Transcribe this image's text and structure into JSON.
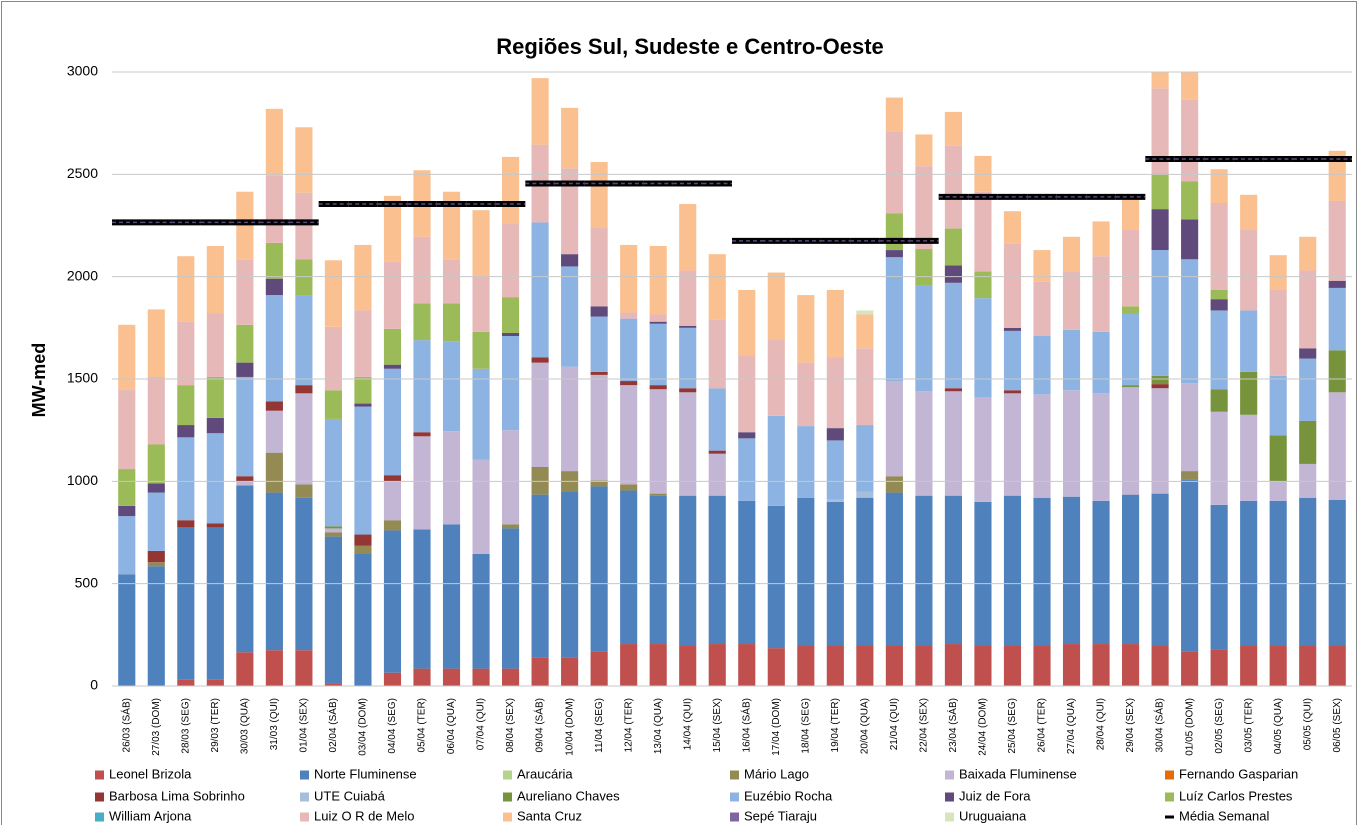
{
  "chart_data": {
    "type": "bar",
    "stacked": true,
    "title": "Regiões Sul, Sudeste e Centro-Oeste",
    "y_label": "MW-med",
    "ylim": [
      0,
      3000
    ],
    "yticks": [
      0,
      500,
      1000,
      1500,
      2000,
      2500,
      3000
    ],
    "grid": true,
    "legend": "bottom",
    "categories": [
      "26/03 (SÁB)",
      "27/03 (DOM)",
      "28/03 (SEG)",
      "29/03 (TER)",
      "30/03 (QUA)",
      "31/03 (QUI)",
      "01/04 (SEX)",
      "02/04 (SÁB)",
      "03/04 (DOM)",
      "04/04 (SEG)",
      "05/04 (TER)",
      "06/04 (QUA)",
      "07/04 (QUI)",
      "08/04 (SEX)",
      "09/04 (SÁB)",
      "10/04 (DOM)",
      "11/04 (SEG)",
      "12/04 (TER)",
      "13/04 (QUA)",
      "14/04 (QUI)",
      "15/04 (SEX)",
      "16/04 (SÁB)",
      "17/04 (DOM)",
      "18/04 (SEG)",
      "19/04 (TER)",
      "20/04 (QUA)",
      "21/04 (QUI)",
      "22/04 (SEX)",
      "23/04 (SÁB)",
      "24/04 (DOM)",
      "25/04 (SEG)",
      "26/04 (TER)",
      "27/04 (QUA)",
      "28/04 (QUI)",
      "29/04 (SEX)",
      "30/04 (SÁB)",
      "01/05 (DOM)",
      "02/05 (SEG)",
      "03/05 (TER)",
      "04/05 (QUA)",
      "05/05 (QUI)",
      "06/05 (SEX)"
    ],
    "series": [
      {
        "name": "Leonel Brizola",
        "color": "#c0504d",
        "values": [
          0,
          0,
          30,
          30,
          165,
          175,
          175,
          10,
          0,
          65,
          85,
          85,
          85,
          85,
          140,
          140,
          170,
          205,
          205,
          200,
          205,
          205,
          185,
          200,
          200,
          200,
          200,
          200,
          205,
          200,
          200,
          200,
          205,
          205,
          205,
          200,
          170,
          180,
          200,
          200,
          200,
          200
        ]
      },
      {
        "name": "Norte Fluminense",
        "color": "#4f81bd",
        "values": [
          545,
          585,
          745,
          745,
          815,
          770,
          745,
          720,
          645,
          695,
          680,
          705,
          560,
          685,
          795,
          810,
          805,
          750,
          725,
          730,
          725,
          700,
          695,
          720,
          700,
          720,
          745,
          730,
          725,
          700,
          730,
          720,
          720,
          700,
          730,
          740,
          840,
          705,
          705,
          705,
          720,
          710
        ]
      },
      {
        "name": "Araucária",
        "color": "#b3d48a",
        "values": [
          0,
          0,
          0,
          0,
          0,
          0,
          0,
          0,
          0,
          0,
          0,
          0,
          0,
          0,
          0,
          0,
          0,
          0,
          0,
          0,
          0,
          0,
          0,
          0,
          0,
          0,
          0,
          0,
          0,
          0,
          0,
          0,
          0,
          0,
          0,
          0,
          0,
          0,
          0,
          0,
          0,
          0
        ]
      },
      {
        "name": "Mário Lago",
        "color": "#948a54",
        "values": [
          0,
          20,
          0,
          0,
          0,
          195,
          65,
          20,
          40,
          50,
          0,
          0,
          0,
          20,
          135,
          100,
          30,
          30,
          10,
          0,
          0,
          0,
          0,
          0,
          0,
          0,
          80,
          0,
          0,
          0,
          0,
          0,
          0,
          0,
          0,
          0,
          40,
          0,
          0,
          0,
          0,
          0
        ]
      },
      {
        "name": "Baixada Fluminense",
        "color": "#c3b6d4",
        "values": [
          0,
          0,
          0,
          0,
          20,
          205,
          445,
          20,
          0,
          190,
          455,
          455,
          460,
          460,
          510,
          510,
          515,
          485,
          510,
          505,
          205,
          0,
          0,
          0,
          0,
          0,
          465,
          510,
          510,
          510,
          500,
          505,
          520,
          525,
          525,
          515,
          430,
          455,
          420,
          95,
          165,
          525
        ]
      },
      {
        "name": "Fernando Gasparian",
        "color": "#e46c0a",
        "values": [
          0,
          0,
          0,
          0,
          0,
          0,
          0,
          0,
          0,
          0,
          0,
          0,
          0,
          0,
          0,
          0,
          0,
          0,
          0,
          0,
          0,
          0,
          0,
          0,
          0,
          0,
          0,
          0,
          0,
          0,
          0,
          0,
          0,
          0,
          0,
          0,
          0,
          0,
          0,
          0,
          0,
          0
        ]
      },
      {
        "name": "Barbosa Lima Sobrinho",
        "color": "#943634",
        "values": [
          0,
          55,
          35,
          20,
          25,
          45,
          40,
          0,
          55,
          30,
          20,
          0,
          0,
          0,
          25,
          0,
          15,
          20,
          20,
          20,
          15,
          0,
          0,
          0,
          0,
          0,
          0,
          0,
          15,
          0,
          15,
          0,
          0,
          0,
          0,
          20,
          0,
          0,
          0,
          0,
          0,
          0
        ]
      },
      {
        "name": "UTE Cuiabá",
        "color": "#a6bddb",
        "values": [
          0,
          0,
          0,
          0,
          0,
          0,
          0,
          0,
          0,
          0,
          0,
          0,
          0,
          0,
          0,
          0,
          0,
          0,
          0,
          0,
          0,
          0,
          0,
          0,
          10,
          30,
          0,
          0,
          0,
          0,
          0,
          0,
          0,
          0,
          0,
          0,
          0,
          0,
          0,
          0,
          0,
          0
        ]
      },
      {
        "name": "Aureliano Chaves",
        "color": "#77933c",
        "values": [
          0,
          0,
          0,
          0,
          0,
          0,
          0,
          10,
          0,
          0,
          0,
          0,
          0,
          0,
          0,
          0,
          0,
          0,
          0,
          0,
          0,
          0,
          0,
          0,
          0,
          0,
          0,
          0,
          0,
          0,
          0,
          0,
          0,
          0,
          10,
          40,
          0,
          110,
          210,
          225,
          210,
          205
        ]
      },
      {
        "name": "Euzébio Rocha",
        "color": "#8db3e2",
        "values": [
          285,
          285,
          405,
          440,
          485,
          520,
          440,
          525,
          625,
          520,
          450,
          440,
          445,
          460,
          660,
          490,
          270,
          305,
          300,
          295,
          305,
          305,
          440,
          350,
          290,
          325,
          605,
          515,
          515,
          485,
          290,
          285,
          295,
          300,
          350,
          615,
          605,
          385,
          300,
          290,
          305,
          305
        ]
      },
      {
        "name": "Juiz de Fora",
        "color": "#604a7b",
        "values": [
          50,
          45,
          60,
          75,
          70,
          80,
          0,
          0,
          15,
          20,
          0,
          0,
          0,
          15,
          0,
          60,
          50,
          0,
          10,
          10,
          0,
          30,
          0,
          0,
          60,
          0,
          35,
          0,
          85,
          0,
          15,
          0,
          0,
          0,
          0,
          200,
          195,
          55,
          0,
          0,
          50,
          35
        ]
      },
      {
        "name": "Luíz Carlos Prestes",
        "color": "#9bbb59",
        "values": [
          180,
          190,
          195,
          200,
          185,
          175,
          175,
          140,
          130,
          175,
          180,
          185,
          180,
          175,
          0,
          0,
          0,
          0,
          0,
          0,
          0,
          0,
          0,
          0,
          0,
          0,
          180,
          180,
          180,
          130,
          0,
          0,
          0,
          0,
          35,
          175,
          185,
          45,
          0,
          0,
          0,
          0
        ]
      },
      {
        "name": "William Arjona",
        "color": "#4bacc6",
        "values": [
          0,
          0,
          0,
          0,
          0,
          0,
          0,
          0,
          0,
          0,
          0,
          0,
          0,
          0,
          0,
          0,
          0,
          0,
          0,
          0,
          0,
          0,
          0,
          0,
          0,
          0,
          0,
          0,
          0,
          0,
          0,
          0,
          0,
          0,
          0,
          0,
          0,
          0,
          0,
          0,
          0,
          0
        ]
      },
      {
        "name": "Luiz O R de Melo",
        "color": "#e6b9b8",
        "values": [
          390,
          330,
          310,
          310,
          320,
          330,
          325,
          310,
          325,
          330,
          325,
          215,
          270,
          360,
          380,
          420,
          385,
          30,
          35,
          270,
          335,
          375,
          375,
          310,
          345,
          375,
          400,
          405,
          405,
          390,
          410,
          265,
          285,
          370,
          375,
          415,
          400,
          425,
          395,
          420,
          380,
          390
        ]
      },
      {
        "name": "Santa Cruz",
        "color": "#fac08f",
        "values": [
          315,
          330,
          320,
          330,
          330,
          325,
          320,
          325,
          320,
          320,
          325,
          330,
          325,
          325,
          325,
          295,
          320,
          330,
          335,
          325,
          320,
          320,
          325,
          330,
          330,
          165,
          165,
          155,
          165,
          175,
          160,
          155,
          170,
          170,
          170,
          80,
          135,
          165,
          170,
          170,
          165,
          245
        ]
      },
      {
        "name": "Sepé Tiaraju",
        "color": "#8064a2",
        "values": [
          0,
          0,
          0,
          0,
          0,
          0,
          0,
          0,
          0,
          0,
          0,
          0,
          0,
          0,
          0,
          0,
          0,
          0,
          0,
          0,
          0,
          0,
          0,
          0,
          0,
          0,
          0,
          0,
          0,
          0,
          0,
          0,
          0,
          0,
          0,
          0,
          0,
          0,
          0,
          0,
          0,
          0
        ]
      },
      {
        "name": "Uruguaiana",
        "color": "#d7e4bd",
        "values": [
          0,
          0,
          0,
          0,
          0,
          0,
          0,
          0,
          0,
          0,
          0,
          0,
          0,
          0,
          0,
          0,
          0,
          0,
          0,
          0,
          0,
          0,
          0,
          0,
          0,
          20,
          0,
          0,
          0,
          0,
          0,
          0,
          0,
          0,
          0,
          0,
          0,
          0,
          0,
          0,
          0,
          0
        ]
      },
      {
        "name": "Média Semanal",
        "type": "line",
        "color": "#000000",
        "values": [
          2265,
          2265,
          2265,
          2265,
          2265,
          2265,
          2265,
          2355,
          2355,
          2355,
          2355,
          2355,
          2355,
          2355,
          2455,
          2455,
          2455,
          2455,
          2455,
          2455,
          2455,
          2175,
          2175,
          2175,
          2175,
          2175,
          2175,
          2175,
          2390,
          2390,
          2390,
          2390,
          2390,
          2390,
          2390,
          2575,
          2575,
          2575,
          2575,
          2575,
          2575,
          2575
        ]
      }
    ]
  }
}
